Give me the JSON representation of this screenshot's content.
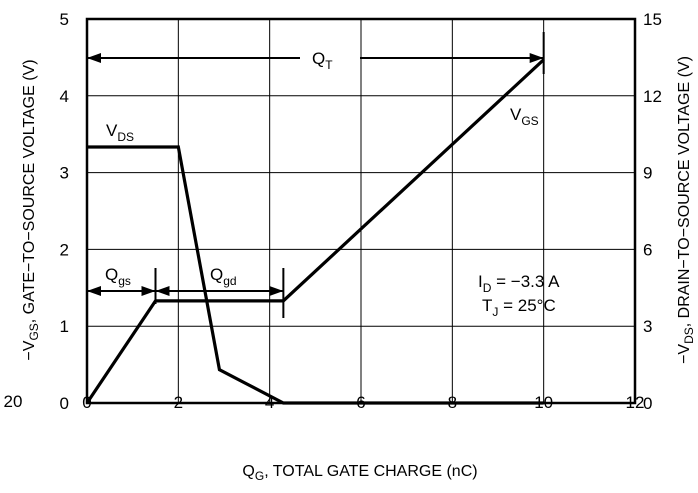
{
  "chart_data": {
    "type": "line",
    "xlabel": {
      "main": "Q",
      "sub": "G",
      "rest": ", TOTAL GATE CHARGE (nC)"
    },
    "ylabel_left": {
      "pre": "−V",
      "sub": "GS",
      "rest": ", GATE−TO−SOURCE VOLTAGE (V)"
    },
    "ylabel_right": {
      "pre": "−V",
      "sub": "DS",
      "rest": ", DRAIN−TO−SOURCE VOLTAGE (V)"
    },
    "xlim": [
      0,
      12
    ],
    "ylim_left": [
      0,
      5
    ],
    "ylim_right": [
      0,
      15
    ],
    "x_ticks": [
      "0",
      "2",
      "4",
      "6",
      "8",
      "10",
      "12"
    ],
    "y_ticks_left": [
      "0",
      "1",
      "2",
      "3",
      "4",
      "5"
    ],
    "y_ticks_right": [
      "0",
      "3",
      "6",
      "9",
      "12",
      "15"
    ],
    "left_edge_label": "20",
    "grid": true,
    "series": [
      {
        "name": "VGS",
        "axis": "left",
        "x": [
          0,
          1.5,
          4.3,
          10
        ],
        "y": [
          0,
          1.33,
          1.33,
          4.47
        ]
      },
      {
        "name": "VDS",
        "axis": "right",
        "x": [
          0,
          2.0,
          2.9,
          4.3,
          10
        ],
        "y": [
          10.0,
          10.0,
          1.3,
          0,
          0
        ]
      }
    ],
    "annotations": {
      "vds_label": {
        "main": "V",
        "sub": "DS"
      },
      "vgs_label": {
        "main": "V",
        "sub": "GS"
      },
      "qt_label": {
        "main": "Q",
        "sub": "T"
      },
      "qgs_label": {
        "main": "Q",
        "sub": "gs"
      },
      "qgd_label": {
        "main": "Q",
        "sub": "gd"
      },
      "id_label": {
        "main": "I",
        "sub": "D",
        "rest": " = −3.3 A"
      },
      "tj_label": {
        "main": "T",
        "sub": "J",
        "rest": " = 25°C"
      }
    }
  }
}
